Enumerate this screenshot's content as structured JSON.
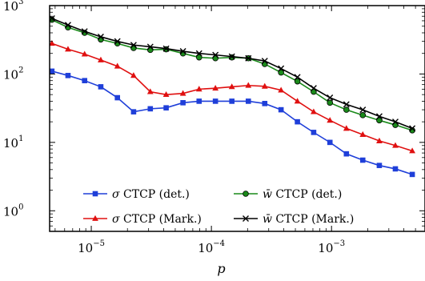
{
  "chart_data": {
    "type": "line",
    "x_scale": "log",
    "y_scale": "log",
    "xlim": [
      4.5e-06,
      0.006
    ],
    "ylim": [
      0.5,
      1000
    ],
    "xlabel": "p",
    "ylabel": "",
    "grid": false,
    "legend_position": "lower-left",
    "x_ticks": [
      {
        "value": 1e-05,
        "base": "10",
        "exp": "−5"
      },
      {
        "value": 0.0001,
        "base": "10",
        "exp": "−4"
      },
      {
        "value": 0.001,
        "base": "10",
        "exp": "−3"
      }
    ],
    "y_ticks": [
      {
        "value": 1,
        "base": "10",
        "exp": "0"
      },
      {
        "value": 10,
        "base": "10",
        "exp": "1"
      },
      {
        "value": 100,
        "base": "10",
        "exp": "2"
      },
      {
        "value": 1000,
        "base": "10",
        "exp": "3"
      }
    ],
    "series": [
      {
        "name": "σ CTCP (det.)",
        "color": "#1f3fd9",
        "marker": "square",
        "x": [
          4.7e-06,
          6.4e-06,
          8.8e-06,
          1.2e-05,
          1.65e-05,
          2.25e-05,
          3.1e-05,
          4.2e-05,
          5.8e-05,
          7.9e-05,
          0.000108,
          0.000148,
          0.000203,
          0.000278,
          0.00038,
          0.00052,
          0.00071,
          0.00097,
          0.00133,
          0.00182,
          0.0025,
          0.0034,
          0.0047
        ],
        "y": [
          110,
          95,
          80,
          65,
          45,
          28,
          31,
          32,
          38,
          40,
          40,
          40,
          40,
          37,
          30,
          20,
          14,
          10,
          6.8,
          5.5,
          4.6,
          4.1,
          3.4
        ]
      },
      {
        "name": "σ CTCP (Mark.)",
        "color": "#e01010",
        "marker": "triangle",
        "x": [
          4.7e-06,
          6.4e-06,
          8.8e-06,
          1.2e-05,
          1.65e-05,
          2.25e-05,
          3.1e-05,
          4.2e-05,
          5.8e-05,
          7.9e-05,
          0.000108,
          0.000148,
          0.000203,
          0.000278,
          0.00038,
          0.00052,
          0.00071,
          0.00097,
          0.00133,
          0.00182,
          0.0025,
          0.0034,
          0.0047
        ],
        "y": [
          280,
          230,
          195,
          160,
          130,
          95,
          55,
          50,
          52,
          60,
          62,
          65,
          68,
          66,
          58,
          40,
          28,
          21,
          16,
          13,
          10.5,
          9,
          7.5
        ]
      },
      {
        "name": "w̄ CTCP (det.)",
        "color": "#1a8a1a",
        "marker": "circle",
        "x": [
          4.7e-06,
          6.4e-06,
          8.8e-06,
          1.2e-05,
          1.65e-05,
          2.25e-05,
          3.1e-05,
          4.2e-05,
          5.8e-05,
          7.9e-05,
          0.000108,
          0.000148,
          0.000203,
          0.000278,
          0.00038,
          0.00052,
          0.00071,
          0.00097,
          0.00133,
          0.00182,
          0.0025,
          0.0034,
          0.0047
        ],
        "y": [
          620,
          480,
          400,
          320,
          280,
          240,
          225,
          230,
          200,
          175,
          170,
          175,
          170,
          140,
          105,
          78,
          55,
          38,
          30,
          25,
          21,
          18,
          15
        ]
      },
      {
        "name": "w̄ CTCP (Mark.)",
        "color": "#000000",
        "marker": "x",
        "x": [
          4.7e-06,
          6.4e-06,
          8.8e-06,
          1.2e-05,
          1.65e-05,
          2.25e-05,
          3.1e-05,
          4.2e-05,
          5.8e-05,
          7.9e-05,
          0.000108,
          0.000148,
          0.000203,
          0.000278,
          0.00038,
          0.00052,
          0.00071,
          0.00097,
          0.00133,
          0.00182,
          0.0025,
          0.0034,
          0.0047
        ],
        "y": [
          650,
          520,
          420,
          350,
          300,
          265,
          250,
          235,
          215,
          200,
          190,
          180,
          170,
          155,
          120,
          90,
          62,
          45,
          36,
          30,
          24,
          20,
          16
        ]
      }
    ],
    "legend": [
      {
        "series": 0,
        "symbol": "σ",
        "text": " CTCP (det.)"
      },
      {
        "series": 2,
        "symbol": "w̄",
        "text": " CTCP (det.)"
      },
      {
        "series": 1,
        "symbol": "σ",
        "text": " CTCP (Mark.)"
      },
      {
        "series": 3,
        "symbol": "w̄",
        "text": " CTCP (Mark.)"
      }
    ]
  }
}
